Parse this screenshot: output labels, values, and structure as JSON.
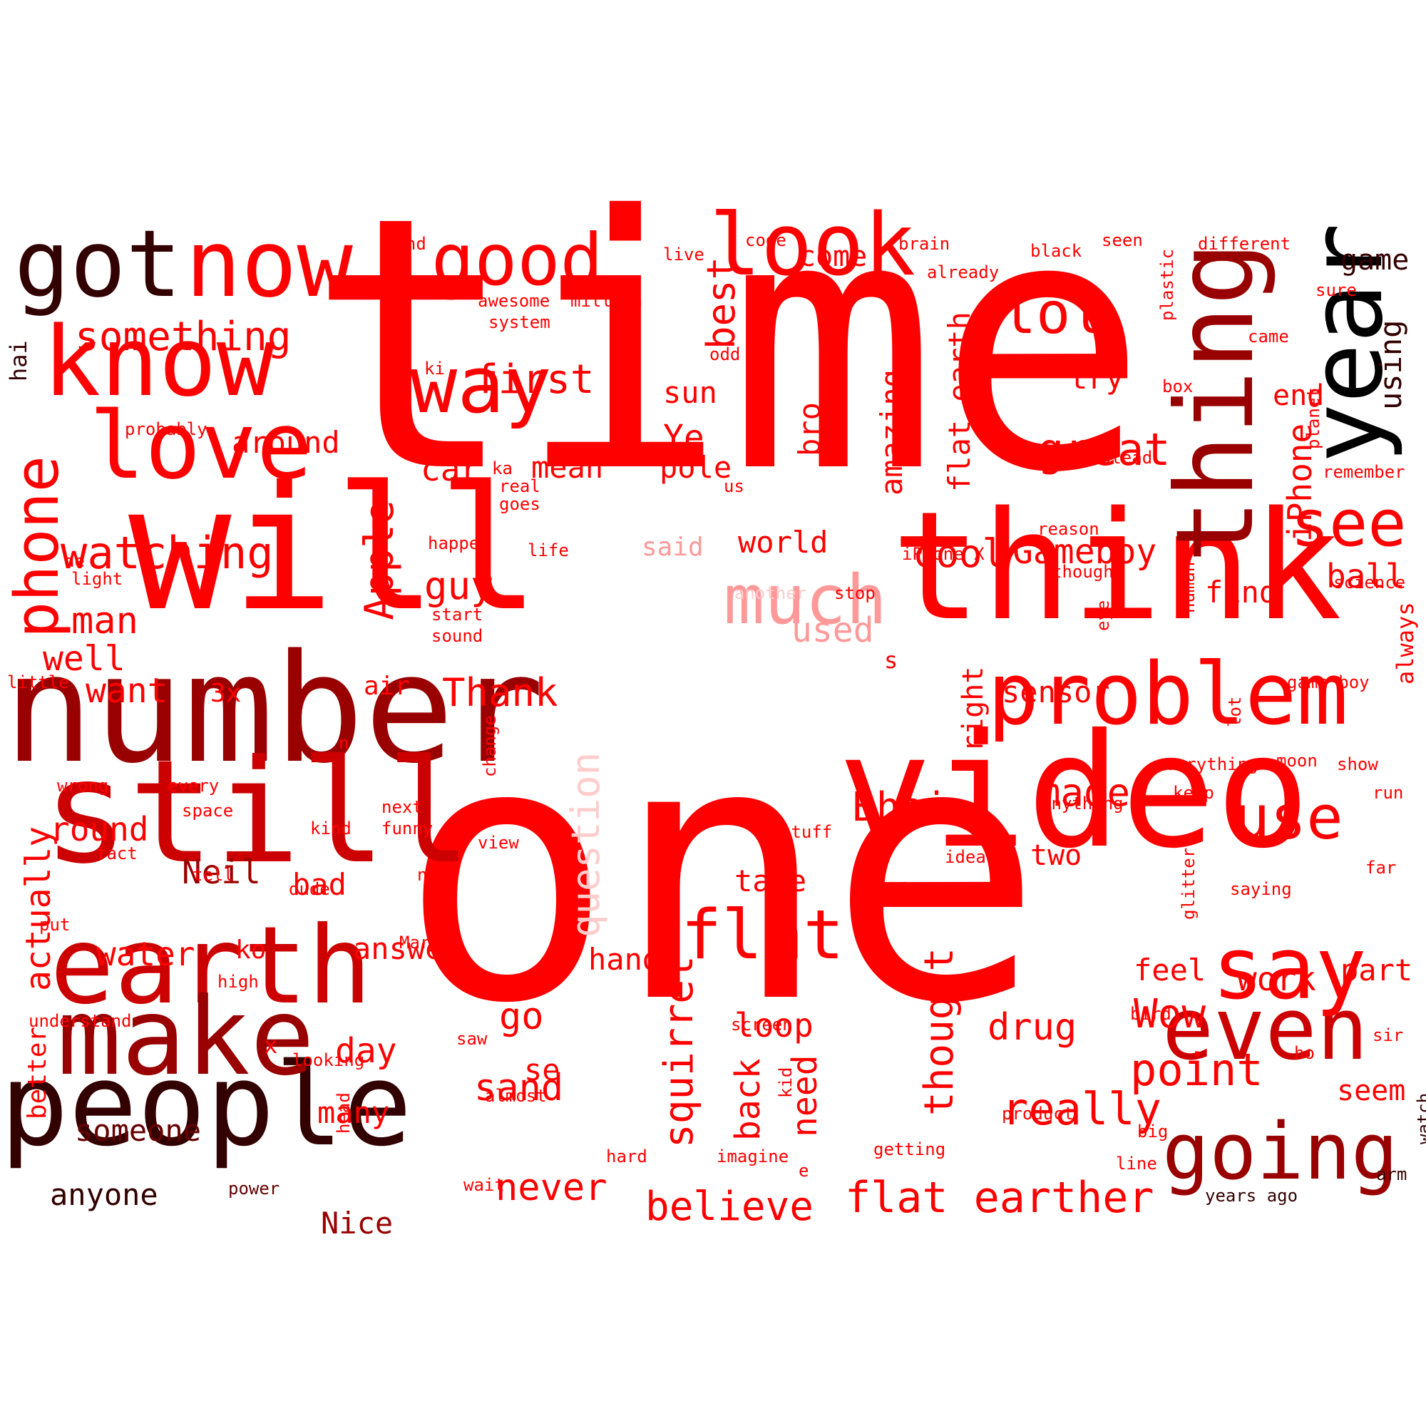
{
  "palette": {
    "red": "#ff0000",
    "deep_red": "#cc0000",
    "dark_red": "#990000",
    "maroon": "#660000",
    "near_black": "#330000",
    "pink": "#ff9999",
    "light_pink": "#ffcccc"
  },
  "words": [
    {
      "text": "time",
      "weight": 1.0,
      "color": "red"
    },
    {
      "text": "one",
      "weight": 1.0,
      "color": "red"
    },
    {
      "text": "will",
      "weight": 0.72,
      "color": "red"
    },
    {
      "text": "video",
      "weight": 0.7,
      "color": "red"
    },
    {
      "text": "think",
      "weight": 0.66,
      "color": "red"
    },
    {
      "text": "number",
      "weight": 0.66,
      "color": "dark_red"
    },
    {
      "text": "still",
      "weight": 0.66,
      "color": "deep_red"
    },
    {
      "text": "people",
      "weight": 0.52,
      "color": "near_black"
    },
    {
      "text": "earth",
      "weight": 0.5,
      "color": "deep_red"
    },
    {
      "text": "make",
      "weight": 0.48,
      "color": "dark_red"
    },
    {
      "text": "thing",
      "weight": 0.48,
      "color": "dark_red"
    },
    {
      "text": "year",
      "weight": 0.46,
      "color": "black"
    },
    {
      "text": "know",
      "weight": 0.46,
      "color": "red"
    },
    {
      "text": "got",
      "weight": 0.42,
      "color": "near_black"
    },
    {
      "text": "now",
      "weight": 0.42,
      "color": "red"
    },
    {
      "text": "love",
      "weight": 0.42,
      "color": "red"
    },
    {
      "text": "look",
      "weight": 0.4,
      "color": "red"
    },
    {
      "text": "problem",
      "weight": 0.4,
      "color": "red"
    },
    {
      "text": "even",
      "weight": 0.4,
      "color": "deep_red"
    },
    {
      "text": "say",
      "weight": 0.4,
      "color": "red"
    },
    {
      "text": "going",
      "weight": 0.36,
      "color": "dark_red"
    },
    {
      "text": "way",
      "weight": 0.36,
      "color": "red"
    },
    {
      "text": "good",
      "weight": 0.34,
      "color": "red"
    },
    {
      "text": "much",
      "weight": 0.33,
      "color": "pink"
    },
    {
      "text": "flat",
      "weight": 0.33,
      "color": "red"
    },
    {
      "text": "see",
      "weight": 0.31,
      "color": "red"
    },
    {
      "text": "phone",
      "weight": 0.3,
      "color": "red"
    },
    {
      "text": "use",
      "weight": 0.29,
      "color": "red"
    },
    {
      "text": "lol",
      "weight": 0.26,
      "color": "red"
    },
    {
      "text": "great",
      "weight": 0.22,
      "color": "red"
    },
    {
      "text": "really",
      "weight": 0.22,
      "color": "red"
    },
    {
      "text": "point",
      "weight": 0.22,
      "color": "red"
    },
    {
      "text": "watching",
      "weight": 0.22,
      "color": "red"
    },
    {
      "text": "flat earther",
      "weight": 0.21,
      "color": "red"
    },
    {
      "text": "Bhai",
      "weight": 0.2,
      "color": "red"
    },
    {
      "text": "something",
      "weight": 0.19,
      "color": "red"
    },
    {
      "text": "first",
      "weight": 0.19,
      "color": "red"
    },
    {
      "text": "believe",
      "weight": 0.19,
      "color": "red"
    },
    {
      "text": "squirrel",
      "weight": 0.19,
      "color": "red"
    },
    {
      "text": "Apple",
      "weight": 0.19,
      "color": "red"
    },
    {
      "text": "Wow",
      "weight": 0.19,
      "color": "red"
    },
    {
      "text": "thought",
      "weight": 0.19,
      "color": "red"
    },
    {
      "text": "cool",
      "weight": 0.18,
      "color": "red"
    },
    {
      "text": "made",
      "weight": 0.18,
      "color": "red"
    },
    {
      "text": "guy",
      "weight": 0.18,
      "color": "red"
    },
    {
      "text": "Thank",
      "weight": 0.18,
      "color": "red"
    },
    {
      "text": "question",
      "weight": 0.18,
      "color": "light_pink"
    },
    {
      "text": "best",
      "weight": 0.17,
      "color": "red"
    },
    {
      "text": "man",
      "weight": 0.17,
      "color": "red"
    },
    {
      "text": "drug",
      "weight": 0.17,
      "color": "red"
    },
    {
      "text": "go",
      "weight": 0.17,
      "color": "red"
    },
    {
      "text": "sand",
      "weight": 0.17,
      "color": "red"
    },
    {
      "text": "never",
      "weight": 0.17,
      "color": "red"
    },
    {
      "text": "Gameboy",
      "weight": 0.16,
      "color": "red"
    },
    {
      "text": "actually",
      "weight": 0.16,
      "color": "red"
    },
    {
      "text": "Ye",
      "weight": 0.16,
      "color": "red"
    },
    {
      "text": "want",
      "weight": 0.16,
      "color": "red"
    },
    {
      "text": "well",
      "weight": 0.16,
      "color": "red"
    },
    {
      "text": "day",
      "weight": 0.16,
      "color": "red"
    },
    {
      "text": "used",
      "weight": 0.16,
      "color": "pink"
    },
    {
      "text": "need",
      "weight": 0.16,
      "color": "red"
    },
    {
      "text": "back",
      "weight": 0.16,
      "color": "red"
    },
    {
      "text": "loop",
      "weight": 0.15,
      "color": "red"
    },
    {
      "text": "ball",
      "weight": 0.15,
      "color": "red"
    },
    {
      "text": "work",
      "weight": 0.15,
      "color": "red"
    },
    {
      "text": "water",
      "weight": 0.15,
      "color": "red"
    },
    {
      "text": "Neil",
      "weight": 0.15,
      "color": "dark_red"
    },
    {
      "text": "round",
      "weight": 0.15,
      "color": "red"
    },
    {
      "text": "iPhone",
      "weight": 0.15,
      "color": "red"
    },
    {
      "text": "car",
      "weight": 0.15,
      "color": "red"
    },
    {
      "text": "amazing",
      "weight": 0.14,
      "color": "red"
    },
    {
      "text": "bro",
      "weight": 0.14,
      "color": "red"
    },
    {
      "text": "bad",
      "weight": 0.14,
      "color": "red"
    },
    {
      "text": "sun",
      "weight": 0.14,
      "color": "red"
    },
    {
      "text": "pole",
      "weight": 0.14,
      "color": "red"
    },
    {
      "text": "mean",
      "weight": 0.14,
      "color": "red"
    },
    {
      "text": "around",
      "weight": 0.14,
      "color": "red"
    },
    {
      "text": "world",
      "weight": 0.14,
      "color": "red"
    },
    {
      "text": "take",
      "weight": 0.14,
      "color": "red"
    },
    {
      "text": "hand",
      "weight": 0.14,
      "color": "red"
    },
    {
      "text": "feel",
      "weight": 0.14,
      "color": "red"
    },
    {
      "text": "part",
      "weight": 0.14,
      "color": "red"
    },
    {
      "text": "using",
      "weight": 0.14,
      "color": "near_black"
    },
    {
      "text": "try",
      "weight": 0.14,
      "color": "red"
    },
    {
      "text": "flat earth",
      "weight": 0.14,
      "color": "red"
    },
    {
      "text": "sensor",
      "weight": 0.14,
      "color": "red"
    },
    {
      "text": "answer",
      "weight": 0.14,
      "color": "red"
    },
    {
      "text": "someone",
      "weight": 0.14,
      "color": "maroon"
    },
    {
      "text": "anyone",
      "weight": 0.14,
      "color": "near_black"
    },
    {
      "text": "Nice",
      "weight": 0.14,
      "color": "dark_red"
    },
    {
      "text": "many",
      "weight": 0.14,
      "color": "red"
    },
    {
      "text": "se",
      "weight": 0.14,
      "color": "red"
    },
    {
      "text": "find",
      "weight": 0.14,
      "color": "red"
    },
    {
      "text": "two",
      "weight": 0.13,
      "color": "red"
    },
    {
      "text": "seem",
      "weight": 0.13,
      "color": "red"
    },
    {
      "text": "end",
      "weight": 0.13,
      "color": "red"
    },
    {
      "text": "right",
      "weight": 0.13,
      "color": "red"
    },
    {
      "text": "come",
      "weight": 0.13,
      "color": "red"
    },
    {
      "text": "game",
      "weight": 0.13,
      "color": "near_black"
    },
    {
      "text": "better",
      "weight": 0.13,
      "color": "red"
    },
    {
      "text": "air",
      "weight": 0.13,
      "color": "red"
    },
    {
      "text": "3x",
      "weight": 0.13,
      "color": "red"
    },
    {
      "text": "ko",
      "weight": 0.13,
      "color": "red"
    },
    {
      "text": "said",
      "weight": 0.12,
      "color": "pink"
    },
    {
      "text": "always",
      "weight": 0.11,
      "color": "red"
    },
    {
      "text": "s",
      "weight": 0.12,
      "color": "red"
    },
    {
      "text": "x",
      "weight": 0.12,
      "color": "red"
    },
    {
      "text": "hai",
      "weight": 0.1,
      "color": "near_black"
    },
    {
      "text": "different",
      "weight": 0.08,
      "color": "red"
    },
    {
      "text": "seen",
      "weight": 0.08,
      "color": "red"
    },
    {
      "text": "black",
      "weight": 0.08,
      "color": "red"
    },
    {
      "text": "brain",
      "weight": 0.08,
      "color": "red"
    },
    {
      "text": "code",
      "weight": 0.08,
      "color": "red"
    },
    {
      "text": "mind",
      "weight": 0.08,
      "color": "red"
    },
    {
      "text": "live",
      "weight": 0.08,
      "color": "red"
    },
    {
      "text": "already",
      "weight": 0.08,
      "color": "red"
    },
    {
      "text": "awesome",
      "weight": 0.08,
      "color": "red"
    },
    {
      "text": "million",
      "weight": 0.08,
      "color": "red"
    },
    {
      "text": "system",
      "weight": 0.08,
      "color": "red"
    },
    {
      "text": "odd",
      "weight": 0.08,
      "color": "red"
    },
    {
      "text": "ki",
      "weight": 0.08,
      "color": "red"
    },
    {
      "text": "probably",
      "weight": 0.08,
      "color": "red"
    },
    {
      "text": "ka",
      "weight": 0.08,
      "color": "red"
    },
    {
      "text": "real",
      "weight": 0.08,
      "color": "red"
    },
    {
      "text": "goes",
      "weight": 0.08,
      "color": "red"
    },
    {
      "text": "us",
      "weight": 0.08,
      "color": "red"
    },
    {
      "text": "sure",
      "weight": 0.08,
      "color": "red"
    },
    {
      "text": "plastic",
      "weight": 0.08,
      "color": "red"
    },
    {
      "text": "came",
      "weight": 0.08,
      "color": "red"
    },
    {
      "text": "box",
      "weight": 0.08,
      "color": "red"
    },
    {
      "text": "instead",
      "weight": 0.08,
      "color": "red"
    },
    {
      "text": "planet",
      "weight": 0.08,
      "color": "red"
    },
    {
      "text": "remember",
      "weight": 0.08,
      "color": "red"
    },
    {
      "text": "reason",
      "weight": 0.08,
      "color": "red"
    },
    {
      "text": "iPhone X",
      "weight": 0.08,
      "color": "red"
    },
    {
      "text": "though",
      "weight": 0.08,
      "color": "red"
    },
    {
      "text": "science",
      "weight": 0.08,
      "color": "red"
    },
    {
      "text": "stop",
      "weight": 0.08,
      "color": "red"
    },
    {
      "text": "another",
      "weight": 0.08,
      "color": "light_pink"
    },
    {
      "text": "happen",
      "weight": 0.08,
      "color": "red"
    },
    {
      "text": "life",
      "weight": 0.08,
      "color": "red"
    },
    {
      "text": "de",
      "weight": 0.08,
      "color": "red"
    },
    {
      "text": "light",
      "weight": 0.08,
      "color": "red"
    },
    {
      "text": "start",
      "weight": 0.08,
      "color": "red"
    },
    {
      "text": "sound",
      "weight": 0.08,
      "color": "red"
    },
    {
      "text": "little",
      "weight": 0.08,
      "color": "red"
    },
    {
      "text": "human",
      "weight": 0.08,
      "color": "red"
    },
    {
      "text": "eye",
      "weight": 0.08,
      "color": "red"
    },
    {
      "text": "game boy",
      "weight": 0.08,
      "color": "red"
    },
    {
      "text": "lot",
      "weight": 0.08,
      "color": "red"
    },
    {
      "text": "everything",
      "weight": 0.08,
      "color": "red"
    },
    {
      "text": "moon",
      "weight": 0.08,
      "color": "red"
    },
    {
      "text": "show",
      "weight": 0.08,
      "color": "red"
    },
    {
      "text": "change",
      "weight": 0.08,
      "color": "red"
    },
    {
      "text": "n",
      "weight": 0.08,
      "color": "red"
    },
    {
      "text": "wrong",
      "weight": 0.08,
      "color": "red"
    },
    {
      "text": "every",
      "weight": 0.08,
      "color": "red"
    },
    {
      "text": "space",
      "weight": 0.08,
      "color": "red"
    },
    {
      "text": "next",
      "weight": 0.08,
      "color": "red"
    },
    {
      "text": "funny",
      "weight": 0.08,
      "color": "red"
    },
    {
      "text": "kind",
      "weight": 0.08,
      "color": "red"
    },
    {
      "text": "anything",
      "weight": 0.08,
      "color": "red"
    },
    {
      "text": "keep",
      "weight": 0.08,
      "color": "red"
    },
    {
      "text": "run",
      "weight": 0.08,
      "color": "red"
    },
    {
      "text": "fact",
      "weight": 0.08,
      "color": "red"
    },
    {
      "text": "tell",
      "weight": 0.08,
      "color": "red"
    },
    {
      "text": "view",
      "weight": 0.08,
      "color": "red"
    },
    {
      "text": "stuff",
      "weight": 0.08,
      "color": "red"
    },
    {
      "text": "idea",
      "weight": 0.08,
      "color": "red"
    },
    {
      "text": "glitter",
      "weight": 0.08,
      "color": "red"
    },
    {
      "text": "far",
      "weight": 0.08,
      "color": "red"
    },
    {
      "text": "saying",
      "weight": 0.08,
      "color": "red"
    },
    {
      "text": "dude",
      "weight": 0.08,
      "color": "red"
    },
    {
      "text": "new",
      "weight": 0.08,
      "color": "red"
    },
    {
      "text": "prove",
      "weight": 0.08,
      "color": "red"
    },
    {
      "text": "put",
      "weight": 0.08,
      "color": "red"
    },
    {
      "text": "Mark",
      "weight": 0.08,
      "color": "red"
    },
    {
      "text": "high",
      "weight": 0.08,
      "color": "red"
    },
    {
      "text": "understand",
      "weight": 0.08,
      "color": "red"
    },
    {
      "text": "looking",
      "weight": 0.08,
      "color": "red"
    },
    {
      "text": "saw",
      "weight": 0.08,
      "color": "red"
    },
    {
      "text": "screen",
      "weight": 0.08,
      "color": "red"
    },
    {
      "text": "bird",
      "weight": 0.08,
      "color": "red"
    },
    {
      "text": "sir",
      "weight": 0.08,
      "color": "red"
    },
    {
      "text": "ho",
      "weight": 0.08,
      "color": "red"
    },
    {
      "text": "almost",
      "weight": 0.08,
      "color": "red"
    },
    {
      "text": "kid",
      "weight": 0.08,
      "color": "red"
    },
    {
      "text": "head",
      "weight": 0.08,
      "color": "red"
    },
    {
      "text": "product",
      "weight": 0.08,
      "color": "red"
    },
    {
      "text": "watch",
      "weight": 0.08,
      "color": "near_black"
    },
    {
      "text": "hard",
      "weight": 0.08,
      "color": "red"
    },
    {
      "text": "imagine",
      "weight": 0.08,
      "color": "red"
    },
    {
      "text": "getting",
      "weight": 0.08,
      "color": "red"
    },
    {
      "text": "big",
      "weight": 0.08,
      "color": "red"
    },
    {
      "text": "power",
      "weight": 0.08,
      "color": "maroon"
    },
    {
      "text": "wait",
      "weight": 0.08,
      "color": "red"
    },
    {
      "text": "e",
      "weight": 0.08,
      "color": "red"
    },
    {
      "text": "line",
      "weight": 0.08,
      "color": "red"
    },
    {
      "text": "arm",
      "weight": 0.08,
      "color": "near_black"
    },
    {
      "text": "years ago",
      "weight": 0.08,
      "color": "near_black"
    }
  ]
}
